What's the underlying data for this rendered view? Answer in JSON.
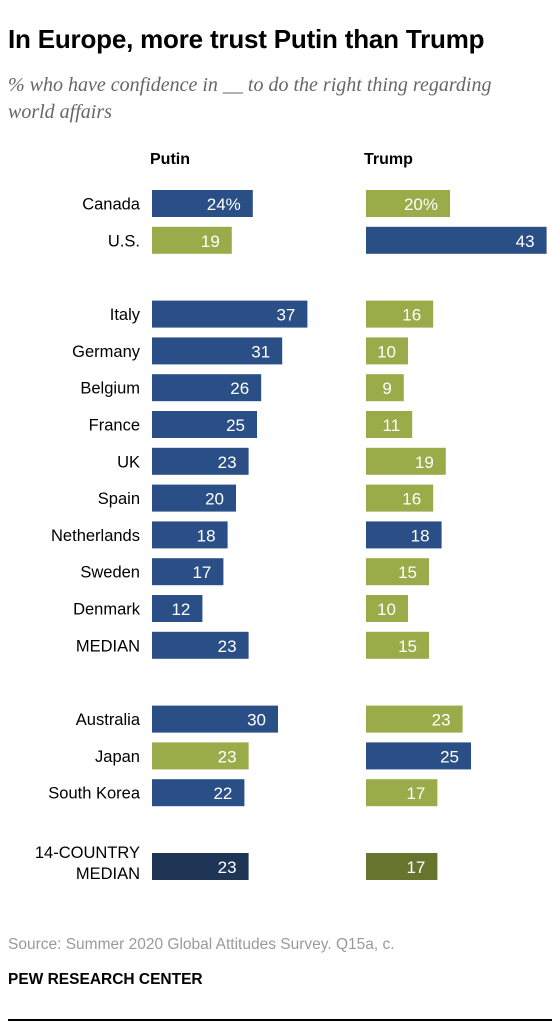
{
  "title": "In Europe, more trust Putin than Trump",
  "subtitle": "% who have confidence in __ to do the right thing regarding world affairs",
  "source": "Source: Summer 2020 Global Attitudes Survey. Q15a, c.",
  "organization": "PEW RESEARCH CENTER",
  "colors": {
    "higher": "#2a4f87",
    "lower": "#9aab4a",
    "median_higher": "#1e3555",
    "median_lower": "#66742e"
  },
  "chart_data": {
    "type": "bar",
    "orientation": "horizontal",
    "grid": false,
    "categories": [
      "Canada",
      "U.S.",
      "Italy",
      "Germany",
      "Belgium",
      "France",
      "UK",
      "Spain",
      "Netherlands",
      "Sweden",
      "Denmark",
      "MEDIAN",
      "Australia",
      "Japan",
      "South Korea",
      "14-COUNTRY MEDIAN"
    ],
    "groups": [
      [
        "Canada",
        "U.S."
      ],
      [
        "Italy",
        "Germany",
        "Belgium",
        "France",
        "UK",
        "Spain",
        "Netherlands",
        "Sweden",
        "Denmark",
        "MEDIAN"
      ],
      [
        "Australia",
        "Japan",
        "South Korea"
      ],
      [
        "14-COUNTRY MEDIAN"
      ]
    ],
    "series": [
      {
        "name": "Putin",
        "values": [
          24,
          19,
          37,
          31,
          26,
          25,
          23,
          20,
          18,
          17,
          12,
          23,
          30,
          23,
          22,
          23
        ]
      },
      {
        "name": "Trump",
        "values": [
          20,
          43,
          16,
          10,
          9,
          11,
          19,
          16,
          18,
          15,
          10,
          15,
          23,
          25,
          17,
          17
        ]
      }
    ],
    "first_value_suffix": "%"
  }
}
